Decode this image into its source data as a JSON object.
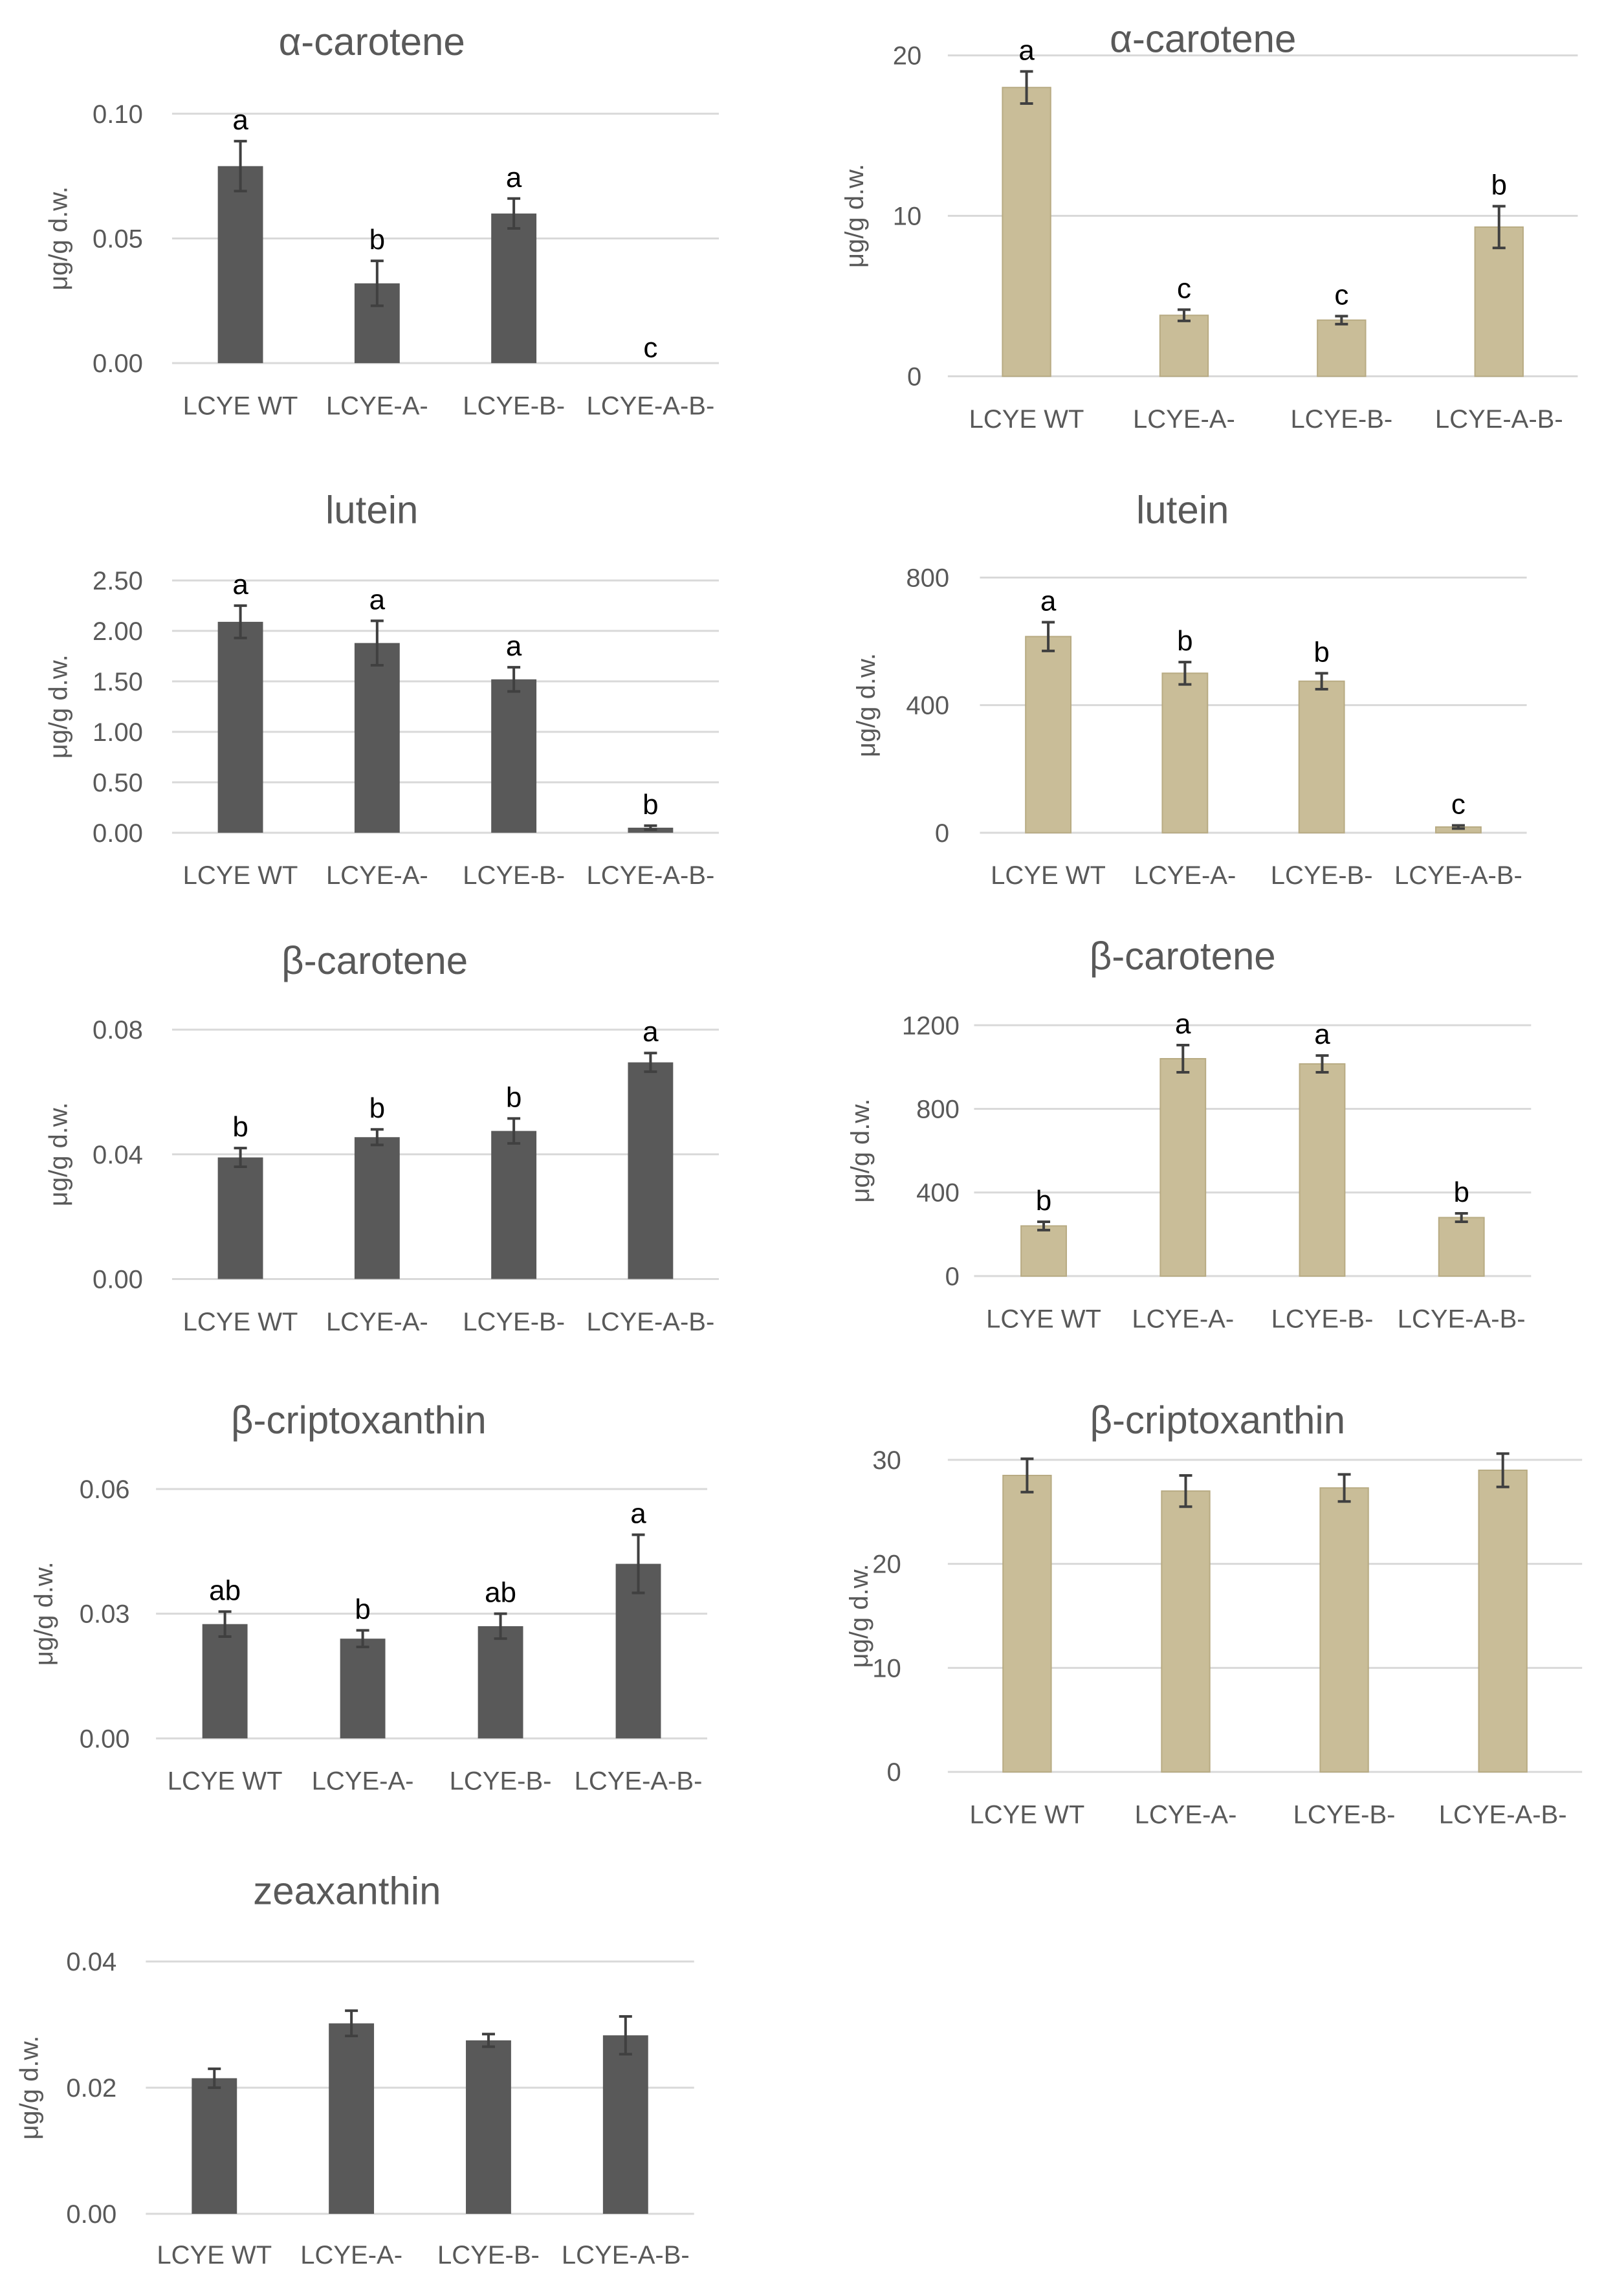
{
  "colors": {
    "dark": "#595959",
    "tan": "#c9bd98",
    "grid": "#d9d9d9",
    "text": "#595959",
    "error": "#404040"
  },
  "chart_data": [
    {
      "type": "bar",
      "title": "α-carotene",
      "ylabel": "μg/g d.w.",
      "color": "dark",
      "categories": [
        "LCYE WT",
        "LCYE-A-",
        "LCYE-B-",
        "LCYE-A-B-"
      ],
      "values": [
        0.079,
        0.032,
        0.06,
        0.0
      ],
      "errors": [
        0.01,
        0.009,
        0.006,
        0.0
      ],
      "significance": [
        "a",
        "b",
        "a",
        "c"
      ],
      "yticks": [
        "0.00",
        "0.05",
        "0.10"
      ],
      "ylim": [
        0,
        0.1
      ]
    },
    {
      "type": "bar",
      "title": "α-carotene",
      "ylabel": "μg/g d.w.",
      "color": "tan",
      "categories": [
        "LCYE WT",
        "LCYE-A-",
        "LCYE-B-",
        "LCYE-A-B-"
      ],
      "values": [
        18.0,
        3.8,
        3.5,
        9.3
      ],
      "errors": [
        1.0,
        0.35,
        0.25,
        1.3
      ],
      "significance": [
        "a",
        "c",
        "c",
        "b"
      ],
      "yticks": [
        "0",
        "10",
        "20"
      ],
      "ylim": [
        0,
        20
      ]
    },
    {
      "type": "bar",
      "title": "lutein",
      "ylabel": "μg/g d.w.",
      "color": "dark",
      "categories": [
        "LCYE WT",
        "LCYE-A-",
        "LCYE-B-",
        "LCYE-A-B-"
      ],
      "values": [
        2.09,
        1.88,
        1.52,
        0.05
      ],
      "errors": [
        0.16,
        0.22,
        0.12,
        0.02
      ],
      "significance": [
        "a",
        "a",
        "a",
        "b"
      ],
      "yticks": [
        "0.00",
        "0.50",
        "1.00",
        "1.50",
        "2.00",
        "2.50"
      ],
      "ylim": [
        0,
        2.5
      ]
    },
    {
      "type": "bar",
      "title": "lutein",
      "ylabel": "μg/g d.w.",
      "color": "tan",
      "categories": [
        "LCYE WT",
        "LCYE-A-",
        "LCYE-B-",
        "LCYE-A-B-"
      ],
      "values": [
        615,
        500,
        475,
        18
      ],
      "errors": [
        45,
        35,
        25,
        5
      ],
      "significance": [
        "a",
        "b",
        "b",
        "c"
      ],
      "yticks": [
        "0",
        "400",
        "800"
      ],
      "ylim": [
        0,
        800
      ]
    },
    {
      "type": "bar",
      "title": "β-carotene",
      "ylabel": "μg/g d.w.",
      "color": "dark",
      "categories": [
        "LCYE WT",
        "LCYE-A-",
        "LCYE-B-",
        "LCYE-A-B-"
      ],
      "values": [
        0.039,
        0.0455,
        0.0475,
        0.0695
      ],
      "errors": [
        0.003,
        0.0025,
        0.004,
        0.003
      ],
      "significance": [
        "b",
        "b",
        "b",
        "a"
      ],
      "yticks": [
        "0.00",
        "0.04",
        "0.08"
      ],
      "ylim": [
        0,
        0.08
      ]
    },
    {
      "type": "bar",
      "title": "β-carotene",
      "ylabel": "μg/g d.w.",
      "color": "tan",
      "categories": [
        "LCYE WT",
        "LCYE-A-",
        "LCYE-B-",
        "LCYE-A-B-"
      ],
      "values": [
        240,
        1040,
        1015,
        280
      ],
      "errors": [
        20,
        65,
        40,
        20
      ],
      "significance": [
        "b",
        "a",
        "a",
        "b"
      ],
      "yticks": [
        "0",
        "400",
        "800",
        "1200"
      ],
      "ylim": [
        0,
        1200
      ]
    },
    {
      "type": "bar",
      "title": "β-criptoxanthin",
      "ylabel": "μg/g d.w.",
      "color": "dark",
      "categories": [
        "LCYE WT",
        "LCYE-A-",
        "LCYE-B-",
        "LCYE-A-B-"
      ],
      "values": [
        0.0275,
        0.024,
        0.027,
        0.042
      ],
      "errors": [
        0.003,
        0.002,
        0.003,
        0.007
      ],
      "significance": [
        "ab",
        "b",
        "ab",
        "a"
      ],
      "yticks": [
        "0.00",
        "0.03",
        "0.06"
      ],
      "ylim": [
        0,
        0.06
      ]
    },
    {
      "type": "bar",
      "title": "β-criptoxanthin",
      "ylabel": "μg/g d.w.",
      "color": "tan",
      "categories": [
        "LCYE WT",
        "LCYE-A-",
        "LCYE-B-",
        "LCYE-A-B-"
      ],
      "values": [
        28.5,
        27.0,
        27.3,
        29.0
      ],
      "errors": [
        1.6,
        1.5,
        1.3,
        1.6
      ],
      "significance": [
        "",
        "",
        "",
        ""
      ],
      "yticks": [
        "0",
        "10",
        "20",
        "30"
      ],
      "ylim": [
        0,
        30
      ]
    },
    {
      "type": "bar",
      "title": "zeaxanthin",
      "ylabel": "μg/g d.w.",
      "color": "dark",
      "categories": [
        "LCYE WT",
        "LCYE-A-",
        "LCYE-B-",
        "LCYE-A-B-"
      ],
      "values": [
        0.0215,
        0.0302,
        0.0275,
        0.0283
      ],
      "errors": [
        0.0015,
        0.002,
        0.001,
        0.003
      ],
      "significance": [
        "",
        "",
        "",
        ""
      ],
      "yticks": [
        "0.00",
        "0.02",
        "0.04"
      ],
      "ylim": [
        0,
        0.04
      ]
    }
  ]
}
